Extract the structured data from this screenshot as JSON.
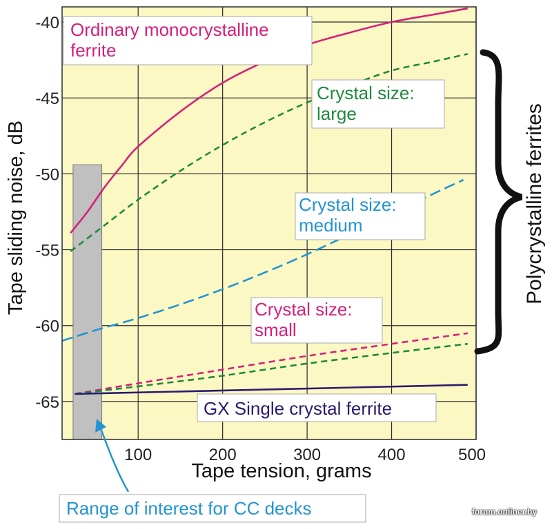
{
  "chart_data": {
    "type": "line",
    "xlabel": "Tape tension, grams",
    "ylabel": "Tape sliding noise, dB",
    "xlim": [
      10,
      500
    ],
    "ylim": [
      -67.5,
      -39
    ],
    "x_ticks": [
      100,
      200,
      300,
      400,
      500
    ],
    "y_ticks": [
      -40,
      -45,
      -50,
      -55,
      -60,
      -65
    ],
    "x_tick_labels": [
      "100",
      "200",
      "300",
      "400",
      "500"
    ],
    "y_tick_labels": [
      "-40",
      "-45",
      "-50",
      "-55",
      "-60",
      "-65"
    ],
    "grid": true,
    "background": "#fcf8c4",
    "shaded_range": {
      "x": [
        23,
        57
      ],
      "y_top": -49.4,
      "color": "#c0c0c0"
    },
    "series": [
      {
        "name": "Ordinary monocrystalline ferrite",
        "color": "#d6207a",
        "dash": "solid",
        "x": [
          20,
          40,
          60,
          80,
          100,
          150,
          200,
          250,
          300,
          350,
          400,
          450,
          490
        ],
        "y": [
          -53.9,
          -52.5,
          -50.9,
          -49.5,
          -48.2,
          -45.9,
          -44.0,
          -42.6,
          -41.5,
          -40.7,
          -40.0,
          -39.5,
          -39.1
        ]
      },
      {
        "name": "Crystal size: large",
        "color": "#1f8a3c",
        "dash": "dashed",
        "x": [
          20,
          60,
          100,
          150,
          200,
          250,
          300,
          350,
          400,
          450,
          490
        ],
        "y": [
          -55.1,
          -53.4,
          -51.7,
          -49.8,
          -48.1,
          -46.6,
          -45.3,
          -44.2,
          -43.2,
          -42.6,
          -42.1
        ]
      },
      {
        "name": "Crystal size: medium",
        "color": "#2394d0",
        "dash": "dashed",
        "x": [
          10,
          50,
          100,
          150,
          200,
          250,
          300,
          350,
          400,
          450,
          485
        ],
        "y": [
          -61.0,
          -60.3,
          -59.5,
          -58.6,
          -57.6,
          -56.5,
          -55.3,
          -54.0,
          -52.7,
          -51.3,
          -50.4
        ]
      },
      {
        "name": "Crystal size: small",
        "color": "#d6207a",
        "dash": "dashed",
        "x": [
          25,
          100,
          200,
          300,
          400,
          490
        ],
        "y": [
          -64.5,
          -63.8,
          -62.9,
          -62.0,
          -61.2,
          -60.5
        ]
      },
      {
        "name": "Crystal size: small (green)",
        "color": "#1f8a3c",
        "dash": "dashed",
        "x": [
          25,
          100,
          200,
          300,
          400,
          490
        ],
        "y": [
          -64.5,
          -64.0,
          -63.3,
          -62.5,
          -61.8,
          -61.2
        ]
      },
      {
        "name": "GX Single crystal ferrite",
        "color": "#2b1a6e",
        "dash": "solid",
        "x": [
          25,
          490
        ],
        "y": [
          -64.5,
          -63.9
        ]
      }
    ],
    "annotations": {
      "ordinary": [
        "Ordinary monocrystalline",
        "ferrite"
      ],
      "large": [
        "Crystal size:",
        "large"
      ],
      "medium": [
        "Crystal size:",
        "medium"
      ],
      "small": [
        "Crystal size:",
        "small"
      ],
      "gx": [
        "GX Single crystal ferrite"
      ],
      "range": [
        "Range of interest for CC decks"
      ]
    },
    "bracket_label": "Polycrystalline ferrites"
  },
  "watermark": "forum.onliner.by"
}
